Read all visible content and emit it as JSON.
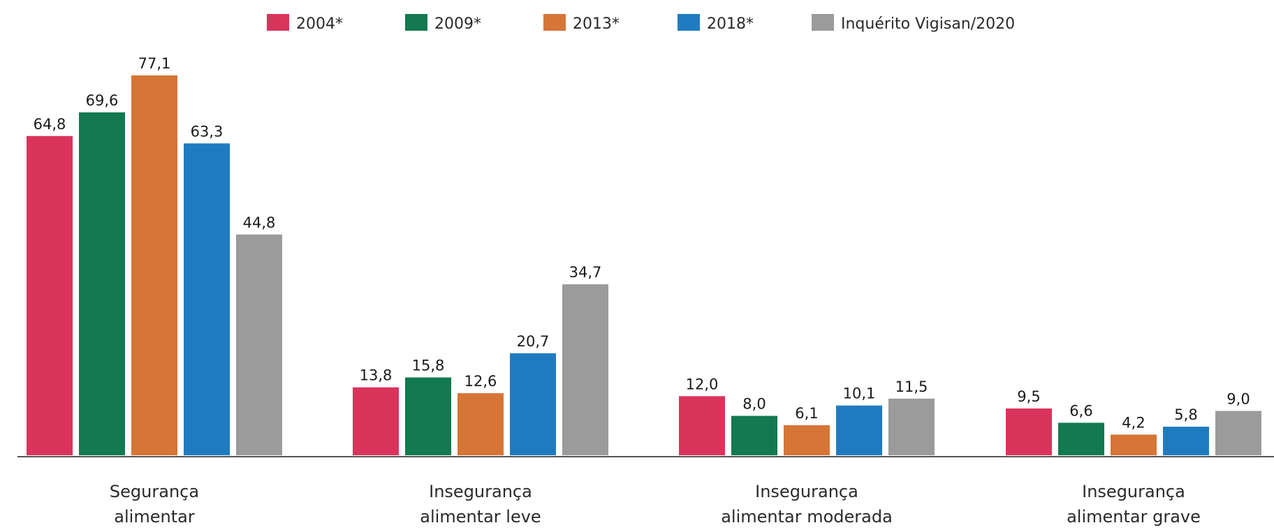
{
  "chart_data": {
    "type": "bar",
    "categories": [
      [
        "Segurança",
        "alimentar"
      ],
      [
        "Insegurança",
        "alimentar leve"
      ],
      [
        "Insegurança",
        "alimentar moderada"
      ],
      [
        "Insegurança",
        "alimentar grave"
      ]
    ],
    "series": [
      {
        "name": "2004*",
        "color": "#d9345c",
        "values": [
          64.8,
          13.8,
          12.0,
          9.5
        ],
        "labels": [
          "64,8",
          "13,8",
          "12,0",
          "9,5"
        ]
      },
      {
        "name": "2009*",
        "color": "#127a4e",
        "values": [
          69.6,
          15.8,
          8.0,
          6.6
        ],
        "labels": [
          "69,6",
          "15,8",
          "8,0",
          "6,6"
        ]
      },
      {
        "name": "2013*",
        "color": "#d67536",
        "values": [
          77.1,
          12.6,
          6.1,
          4.2
        ],
        "labels": [
          "77,1",
          "12,6",
          "6,1",
          "4,2"
        ]
      },
      {
        "name": "2018*",
        "color": "#1f7bc0",
        "values": [
          63.3,
          20.7,
          10.1,
          5.8
        ],
        "labels": [
          "63,3",
          "20,7",
          "10,1",
          "5,8"
        ]
      },
      {
        "name": "Inquérito Vigisan/2020",
        "color": "#9b9b9b",
        "values": [
          44.8,
          34.7,
          11.5,
          9.0
        ],
        "labels": [
          "44,8",
          "34,7",
          "11,5",
          "9,0"
        ]
      }
    ],
    "ylim": [
      0,
      80
    ],
    "grid": false,
    "legend": "top"
  }
}
